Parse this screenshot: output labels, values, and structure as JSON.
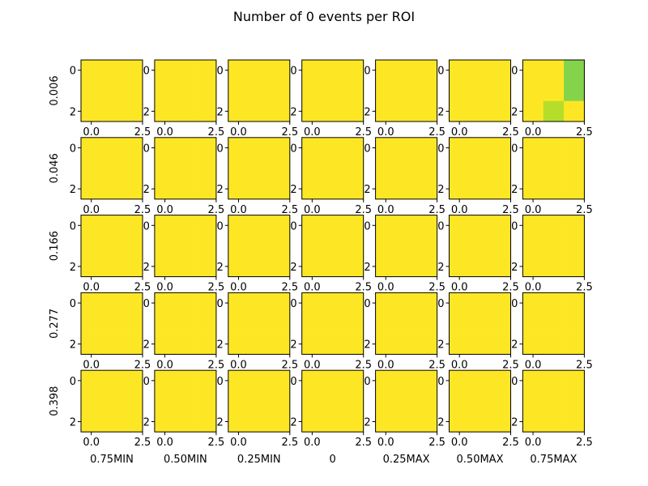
{
  "chart_data": {
    "type": "heatmap",
    "title": "Number of 0 events per ROI",
    "row_labels": [
      "0.006",
      "0.046",
      "0.166",
      "0.277",
      "0.398"
    ],
    "col_labels": [
      "0.75MIN",
      "0.50MIN",
      "0.25MIN",
      "0",
      "0.25MAX",
      "0.50MAX",
      "0.75MAX"
    ],
    "x_ticks": [
      "0.0",
      "2.5"
    ],
    "y_ticks": [
      "0",
      "2"
    ],
    "grid": false,
    "colors": {
      "base": "#fde725",
      "mid": "#b5de2b",
      "low": "#84d44b"
    },
    "cells": [
      {
        "row": 0,
        "col": 6,
        "sub_row": 0,
        "sub_col": 2,
        "color": "#84d44b"
      },
      {
        "row": 0,
        "col": 6,
        "sub_row": 1,
        "sub_col": 2,
        "color": "#84d44b"
      },
      {
        "row": 0,
        "col": 6,
        "sub_row": 2,
        "sub_col": 1,
        "color": "#b5de2b"
      }
    ]
  }
}
